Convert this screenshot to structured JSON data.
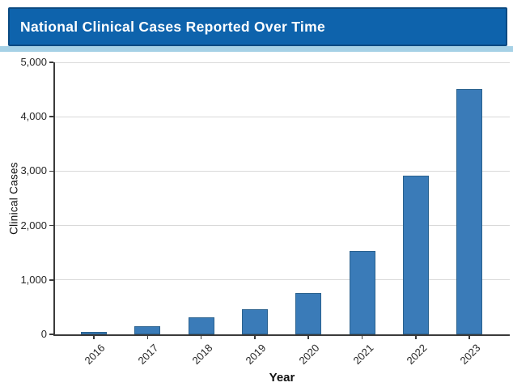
{
  "header": {
    "title": "National Clinical Cases Reported Over Time"
  },
  "chart_data": {
    "type": "bar",
    "title": "National Clinical Cases Reported Over Time",
    "categories": [
      "2016",
      "2017",
      "2018",
      "2019",
      "2020",
      "2021",
      "2022",
      "2023"
    ],
    "values": [
      50,
      155,
      320,
      455,
      755,
      1530,
      2915,
      4505
    ],
    "xlabel": "Year",
    "ylabel": "Clinical Cases",
    "ylim": [
      0,
      5000
    ],
    "yticks": [
      0,
      1000,
      2000,
      3000,
      4000,
      5000
    ],
    "ytick_labels": [
      "0",
      "1,000",
      "2,000",
      "3,000",
      "4,000",
      "5,000"
    ],
    "x_tick_rotation": 45,
    "grid": "horizontal-gridlines-on",
    "legend": "none",
    "bar_color": "#3a7bb8",
    "bar_edge_color": "#2a618e"
  },
  "colors": {
    "banner_background": "#0e63ac",
    "banner_border": "#0b4a82",
    "separator_strip": "#a6d1e6",
    "gridline": "#d9d9d9",
    "axis_spine": "#3a3a3a",
    "page_background": "#ffffff",
    "title_text": "#ffffff",
    "tick_text": "#262626"
  }
}
